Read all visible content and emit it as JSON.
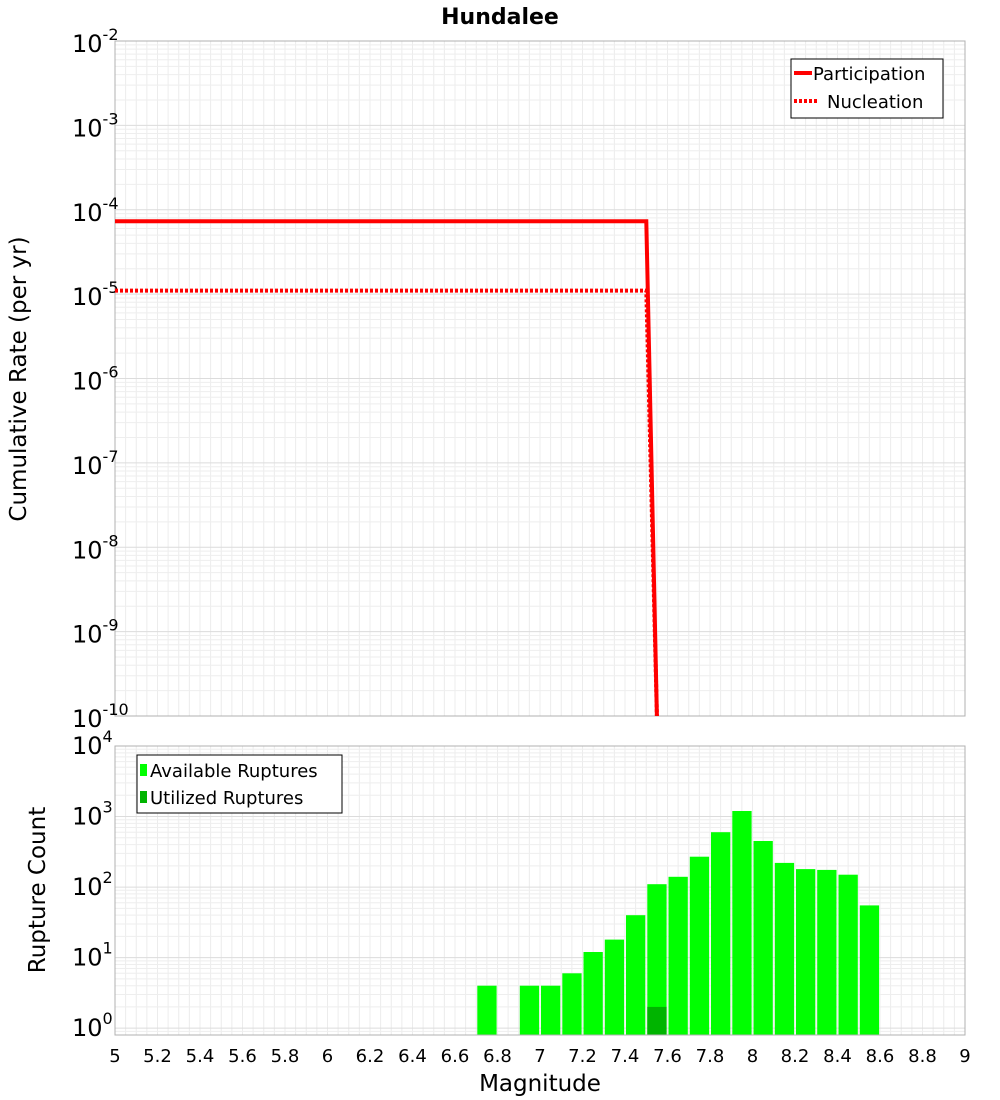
{
  "chart_data": [
    {
      "type": "line",
      "title": "Hundalee",
      "xlabel": "",
      "ylabel": "Cumulative Rate (per yr)",
      "xlim": [
        5,
        9
      ],
      "ylim": [
        1e-10,
        0.01
      ],
      "yscale": "log",
      "grid": true,
      "legend_position": "top-right",
      "y_tick_labels": [
        {
          "base": "10",
          "exp": "-2"
        },
        {
          "base": "10",
          "exp": "-3"
        },
        {
          "base": "10",
          "exp": "-4"
        },
        {
          "base": "10",
          "exp": "-5"
        },
        {
          "base": "10",
          "exp": "-6"
        },
        {
          "base": "10",
          "exp": "-7"
        },
        {
          "base": "10",
          "exp": "-8"
        },
        {
          "base": "10",
          "exp": "-9"
        },
        {
          "base": "10",
          "exp": "-10"
        }
      ],
      "series": [
        {
          "name": "Participation",
          "color": "#ff0000",
          "style": "solid",
          "x": [
            5.0,
            7.5,
            7.55
          ],
          "y": [
            7.3e-05,
            7.3e-05,
            1e-10
          ]
        },
        {
          "name": "Nucleation",
          "color": "#ff0000",
          "style": "dotted",
          "x": [
            5.0,
            7.5,
            7.55
          ],
          "y": [
            1.1e-05,
            1.1e-05,
            1e-10
          ]
        }
      ]
    },
    {
      "type": "bar",
      "title": "",
      "xlabel": "Magnitude",
      "ylabel": "Rupture Count",
      "xlim": [
        5,
        9
      ],
      "ylim": [
        0.8,
        10000
      ],
      "yscale": "log",
      "grid": true,
      "legend_position": "top-left",
      "x_ticks": [
        "5",
        "5.2",
        "5.4",
        "5.6",
        "5.8",
        "6",
        "6.2",
        "6.4",
        "6.6",
        "6.8",
        "7",
        "7.2",
        "7.4",
        "7.6",
        "7.8",
        "8",
        "8.2",
        "8.4",
        "8.6",
        "8.8",
        "9"
      ],
      "y_tick_labels": [
        {
          "base": "10",
          "exp": "4"
        },
        {
          "base": "10",
          "exp": "3"
        },
        {
          "base": "10",
          "exp": "2"
        },
        {
          "base": "10",
          "exp": "1"
        },
        {
          "base": "10",
          "exp": "0"
        }
      ],
      "series": [
        {
          "name": "Available Ruptures",
          "color": "#00ff00",
          "x": [
            6.75,
            6.95,
            7.05,
            7.15,
            7.25,
            7.35,
            7.45,
            7.55,
            7.65,
            7.75,
            7.85,
            7.95,
            8.05,
            8.15,
            8.25,
            8.35,
            8.45,
            8.55
          ],
          "values": [
            4,
            4,
            4,
            6,
            12,
            18,
            40,
            110,
            140,
            270,
            600,
            1200,
            450,
            220,
            180,
            175,
            150,
            55
          ]
        },
        {
          "name": "Utilized Ruptures",
          "color": "#00b400",
          "x": [
            7.55
          ],
          "values": [
            2
          ]
        }
      ]
    }
  ]
}
